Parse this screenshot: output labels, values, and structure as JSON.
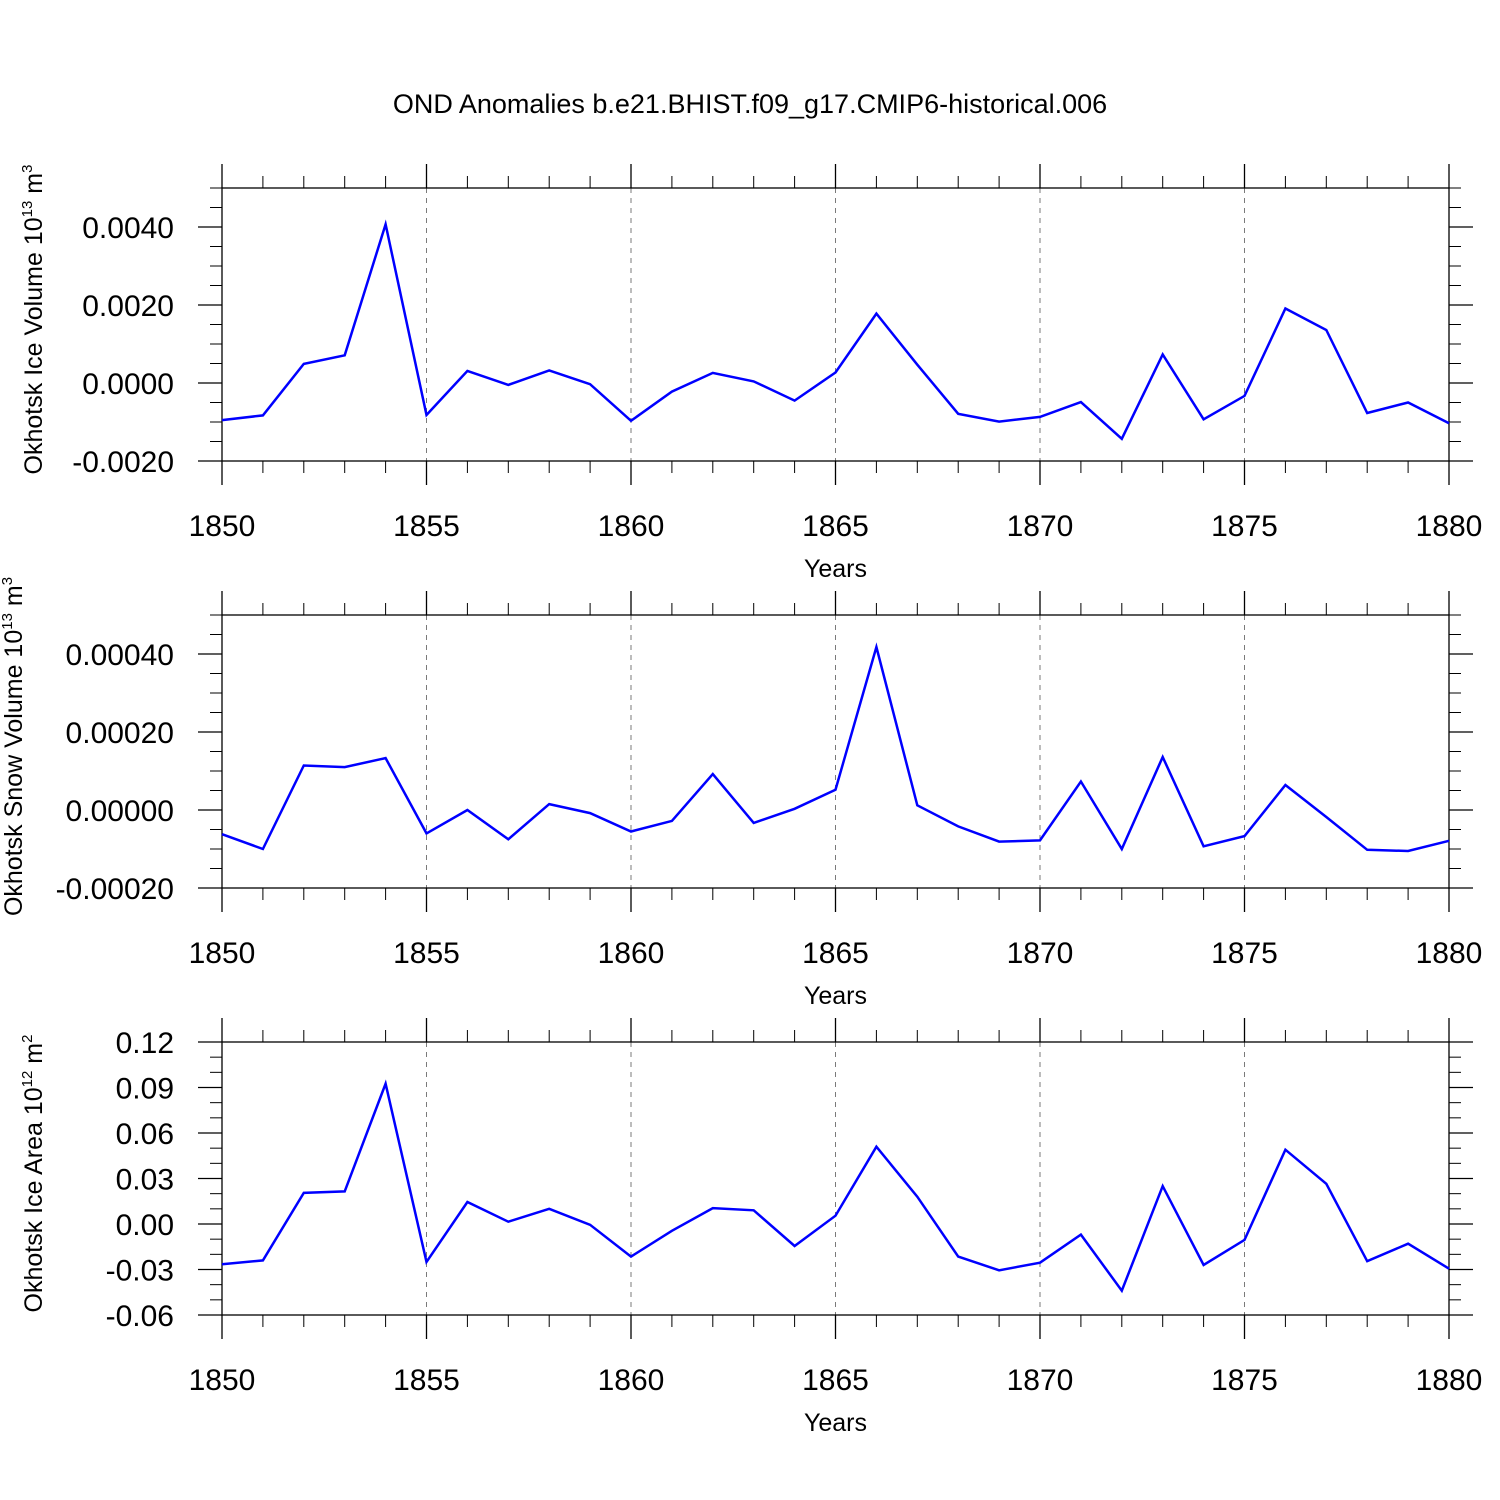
{
  "title": "OND Anomalies b.e21.BHIST.f09_g17.CMIP6-historical.006",
  "line_color": "#0000ff",
  "chart_data": [
    {
      "type": "line",
      "xlabel": "Years",
      "ylabel": {
        "prefix": "Okhotsk Ice Volume 10",
        "exp": "13",
        "unit": " m",
        "unit_exp": "3"
      },
      "xlim": [
        1850,
        1880
      ],
      "ylim": [
        -0.002,
        0.005
      ],
      "x_ticks": [
        1850,
        1855,
        1860,
        1865,
        1870,
        1875,
        1880
      ],
      "x_tick_labels": [
        "1850",
        "1855",
        "1860",
        "1865",
        "1870",
        "1875",
        "1880"
      ],
      "y_ticks": [
        -0.002,
        0.0,
        0.002,
        0.004
      ],
      "y_tick_labels": [
        "-0.0020",
        "0.0000",
        "0.0020",
        "0.0040"
      ],
      "y_minor_step": 0.0005,
      "grid": "dashed vertical at major x ticks",
      "x": [
        1850,
        1851,
        1852,
        1853,
        1854,
        1855,
        1856,
        1857,
        1858,
        1859,
        1860,
        1861,
        1862,
        1863,
        1864,
        1865,
        1866,
        1867,
        1868,
        1869,
        1870,
        1871,
        1872,
        1873,
        1874,
        1875,
        1876,
        1877,
        1878,
        1879,
        1880
      ],
      "values": [
        -0.00095,
        -0.00083,
        0.00049,
        0.00071,
        0.00407,
        -0.00082,
        0.00031,
        -5e-05,
        0.00032,
        -3e-05,
        -0.00097,
        -0.00022,
        0.00026,
        4e-05,
        -0.00045,
        0.00027,
        0.00178,
        0.00047,
        -0.00079,
        -0.00099,
        -0.00087,
        -0.00049,
        -0.00143,
        0.00073,
        -0.00093,
        -0.00033,
        0.00191,
        0.00136,
        -0.00077,
        -0.0005,
        -0.00103
      ]
    },
    {
      "type": "line",
      "xlabel": "Years",
      "ylabel": {
        "prefix": "Okhotsk Snow Volume 10",
        "exp": "13",
        "unit": " m",
        "unit_exp": "3"
      },
      "xlim": [
        1850,
        1880
      ],
      "ylim": [
        -0.0002,
        0.0005
      ],
      "x_ticks": [
        1850,
        1855,
        1860,
        1865,
        1870,
        1875,
        1880
      ],
      "x_tick_labels": [
        "1850",
        "1855",
        "1860",
        "1865",
        "1870",
        "1875",
        "1880"
      ],
      "y_ticks": [
        -0.0002,
        0.0,
        0.0002,
        0.0004
      ],
      "y_tick_labels": [
        "-0.00020",
        "0.00000",
        "0.00020",
        "0.00040"
      ],
      "y_minor_step": 5e-05,
      "grid": "dashed vertical at major x ticks",
      "x": [
        1850,
        1851,
        1852,
        1853,
        1854,
        1855,
        1856,
        1857,
        1858,
        1859,
        1860,
        1861,
        1862,
        1863,
        1864,
        1865,
        1866,
        1867,
        1868,
        1869,
        1870,
        1871,
        1872,
        1873,
        1874,
        1875,
        1876,
        1877,
        1878,
        1879,
        1880
      ],
      "values": [
        -6.2e-05,
        -0.0001,
        0.000114,
        0.00011,
        0.000133,
        -6e-05,
        0.0,
        -7.5e-05,
        1.5e-05,
        -8e-06,
        -5.5e-05,
        -2.8e-05,
        9.2e-05,
        -3.3e-05,
        3e-06,
        5.2e-05,
        0.000418,
        1.2e-05,
        -4.2e-05,
        -8.1e-05,
        -7.8e-05,
        7.3e-05,
        -0.0001,
        0.000136,
        -9.3e-05,
        -6.7e-05,
        6.4e-05,
        -1.8e-05,
        -0.000102,
        -0.000105,
        -7.9e-05
      ]
    },
    {
      "type": "line",
      "xlabel": "Years",
      "ylabel": {
        "prefix": "Okhotsk Ice Area 10",
        "exp": "12",
        "unit": " m",
        "unit_exp": "2"
      },
      "xlim": [
        1850,
        1880
      ],
      "ylim": [
        -0.06,
        0.12
      ],
      "x_ticks": [
        1850,
        1855,
        1860,
        1865,
        1870,
        1875,
        1880
      ],
      "x_tick_labels": [
        "1850",
        "1855",
        "1860",
        "1865",
        "1870",
        "1875",
        "1880"
      ],
      "y_ticks": [
        -0.06,
        -0.03,
        0.0,
        0.03,
        0.06,
        0.09,
        0.12
      ],
      "y_tick_labels": [
        "-0.06",
        "-0.03",
        "0.00",
        "0.03",
        "0.06",
        "0.09",
        "0.12"
      ],
      "y_minor_step": 0.01,
      "grid": "dashed vertical at major x ticks",
      "x": [
        1850,
        1851,
        1852,
        1853,
        1854,
        1855,
        1856,
        1857,
        1858,
        1859,
        1860,
        1861,
        1862,
        1863,
        1864,
        1865,
        1866,
        1867,
        1868,
        1869,
        1870,
        1871,
        1872,
        1873,
        1874,
        1875,
        1876,
        1877,
        1878,
        1879,
        1880
      ],
      "values": [
        -0.0265,
        -0.024,
        0.0205,
        0.0215,
        0.0925,
        -0.025,
        0.0145,
        0.0015,
        0.01,
        -0.0005,
        -0.0215,
        -0.0045,
        0.0105,
        0.009,
        -0.0145,
        0.0055,
        0.051,
        0.018,
        -0.0215,
        -0.0305,
        -0.0255,
        -0.007,
        -0.044,
        0.025,
        -0.027,
        -0.0105,
        0.049,
        0.0265,
        -0.0245,
        -0.013,
        -0.0295
      ]
    }
  ]
}
